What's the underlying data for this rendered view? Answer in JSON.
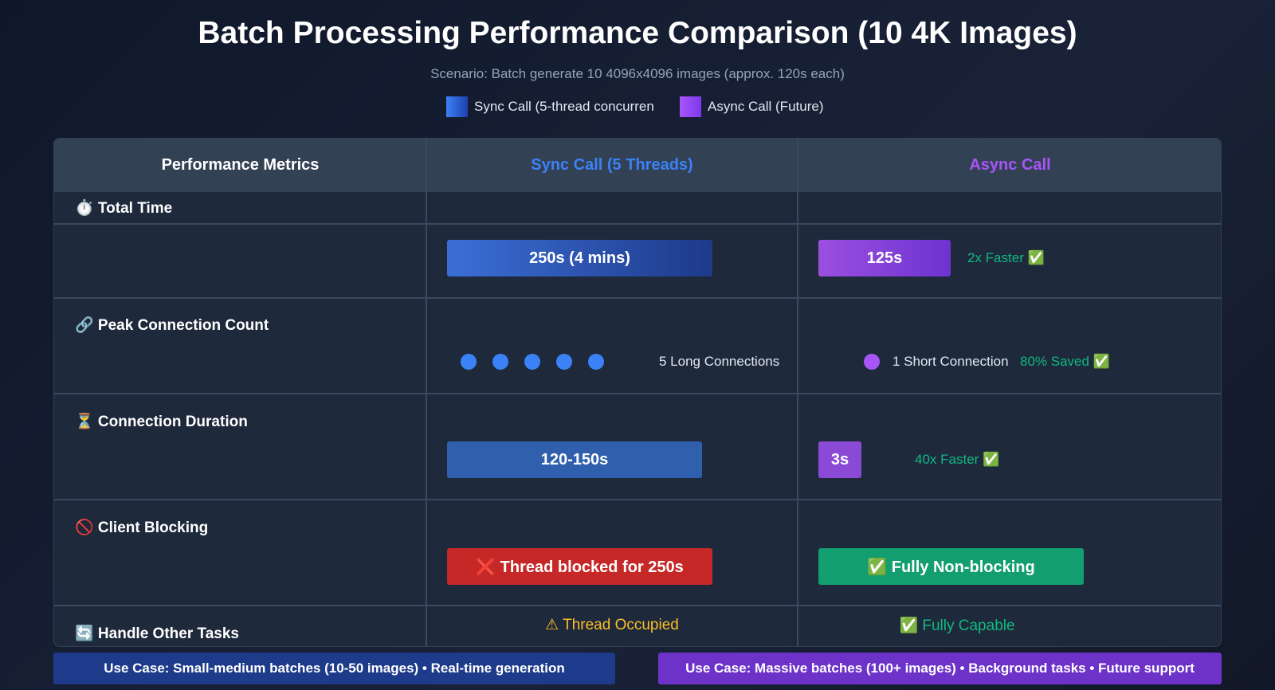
{
  "title": "Batch Processing Performance Comparison (10 4K Images)",
  "subtitle": "Scenario: Batch generate 10 4096x4096 images (approx. 120s each)",
  "legend": [
    {
      "label": "Sync Call (5-thread concurren",
      "color": "#3b82f6"
    },
    {
      "label": "Async Call (Future)",
      "color": "#a855f7"
    }
  ],
  "header": {
    "metrics": "Performance Metrics",
    "sync": "Sync Call (5 Threads)",
    "async": "Async Call"
  },
  "colors": {
    "sync": "#3b82f6",
    "async": "#a855f7",
    "good": "#10b981",
    "bad": "#c62828",
    "warn": "#fbbf24"
  },
  "rows": {
    "total_time": {
      "label": "⏱️ Total Time",
      "sync": "250s (4 mins)",
      "async": "125s",
      "note": "2x Faster ✅"
    },
    "connections": {
      "label": "🔗 Peak Connection Count",
      "sync": "5 Long Connections",
      "sync_count": 5,
      "async": "1 Short Connection",
      "async_count": 1,
      "note": "80% Saved ✅"
    },
    "duration": {
      "label": "⏳ Connection Duration",
      "sync": "120-150s",
      "async": "3s",
      "note": "40x Faster ✅"
    },
    "blocking": {
      "label": "🚫 Client Blocking",
      "sync": "❌ Thread blocked for 250s",
      "async": "✅ Fully Non-blocking"
    },
    "other_tasks": {
      "label": "🔄 Handle Other Tasks",
      "sync": "⚠ Thread Occupied",
      "async": "✅ Fully Capable"
    }
  },
  "footer": {
    "sync": "Use Case: Small-medium batches (10-50 images) • Real-time generation",
    "async": "Use Case: Massive batches (100+ images) • Background tasks • Future support"
  }
}
